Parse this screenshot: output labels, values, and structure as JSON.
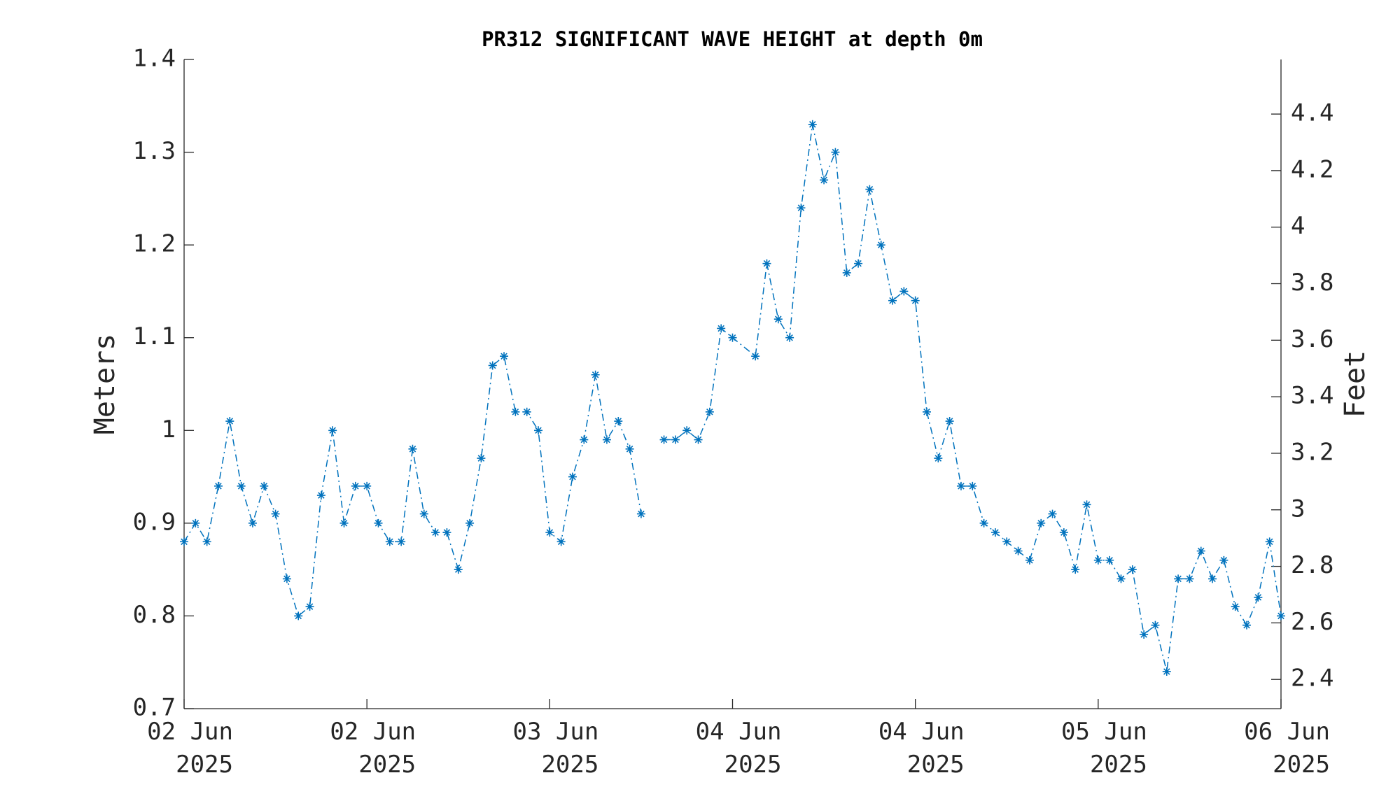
{
  "chart_data": {
    "type": "line",
    "title": "PR312 SIGNIFICANT WAVE HEIGHT at depth 0m",
    "ylabel": "Meters",
    "y2label": "Feet",
    "x": [
      0,
      1,
      2,
      3,
      4,
      5,
      6,
      7,
      8,
      9,
      10,
      11,
      12,
      13,
      14,
      15,
      16,
      17,
      18,
      19,
      20,
      21,
      22,
      23,
      24,
      25,
      26,
      27,
      28,
      29,
      30,
      31,
      32,
      33,
      34,
      35,
      36,
      37,
      38,
      39,
      40,
      41,
      42,
      43,
      44,
      45,
      46,
      47,
      48,
      50,
      51,
      52,
      53,
      54,
      55,
      56,
      57,
      58,
      59,
      60,
      61,
      62,
      63,
      64,
      65,
      66,
      67,
      68,
      69,
      70,
      71,
      72,
      73,
      74,
      75,
      76,
      77,
      78,
      79,
      80,
      81,
      82,
      83,
      84,
      85,
      86,
      87,
      88,
      89,
      90,
      91,
      92,
      93,
      94,
      95,
      96
    ],
    "series": [
      {
        "name": "Significant wave height",
        "color": "#0072bd",
        "values": [
          0.88,
          0.9,
          0.88,
          0.94,
          1.01,
          0.94,
          0.9,
          0.94,
          0.91,
          0.84,
          0.8,
          0.81,
          0.93,
          1.0,
          0.9,
          0.94,
          0.94,
          0.9,
          0.88,
          0.88,
          0.98,
          0.91,
          0.89,
          0.89,
          0.85,
          0.9,
          0.97,
          1.07,
          1.08,
          1.02,
          1.02,
          1.0,
          0.89,
          0.88,
          0.95,
          0.99,
          1.06,
          0.99,
          1.01,
          0.98,
          0.91,
          null,
          0.99,
          0.99,
          1.0,
          0.99,
          1.02,
          1.11,
          1.1,
          1.08,
          1.18,
          1.12,
          1.1,
          1.24,
          1.33,
          1.27,
          1.3,
          1.17,
          1.18,
          1.26,
          1.2,
          1.14,
          1.15,
          1.14,
          1.02,
          0.97,
          1.01,
          0.94,
          0.94,
          0.9,
          0.89,
          0.88,
          0.87,
          0.86,
          0.9,
          0.91,
          0.89,
          0.85,
          0.92,
          0.86,
          0.86,
          0.84,
          0.85,
          0.78,
          0.79,
          0.74,
          0.84,
          0.84,
          0.87,
          0.84,
          0.86,
          0.81,
          0.79,
          0.82,
          0.88,
          0.8
        ]
      }
    ],
    "xlim": [
      0,
      96
    ],
    "xticks": [
      {
        "value": 0,
        "label": "02 Jun\n2025"
      },
      {
        "value": 16,
        "label": "02 Jun\n2025"
      },
      {
        "value": 32,
        "label": "03 Jun\n2025"
      },
      {
        "value": 48,
        "label": "04 Jun\n2025"
      },
      {
        "value": 64,
        "label": "04 Jun\n2025"
      },
      {
        "value": 80,
        "label": "05 Jun\n2025"
      },
      {
        "value": 96,
        "label": "06 Jun\n2025"
      }
    ],
    "ylim": [
      0.7,
      1.4
    ],
    "yticks": [
      0.7,
      0.8,
      0.9,
      1,
      1.1,
      1.2,
      1.3,
      1.4
    ],
    "y2lim": [
      2.29659,
      4.59318
    ],
    "y2ticks": [
      2.4,
      2.6,
      2.8,
      3,
      3.2,
      3.4,
      3.6,
      3.8,
      4,
      4.2,
      4.4
    ],
    "grid": false
  }
}
